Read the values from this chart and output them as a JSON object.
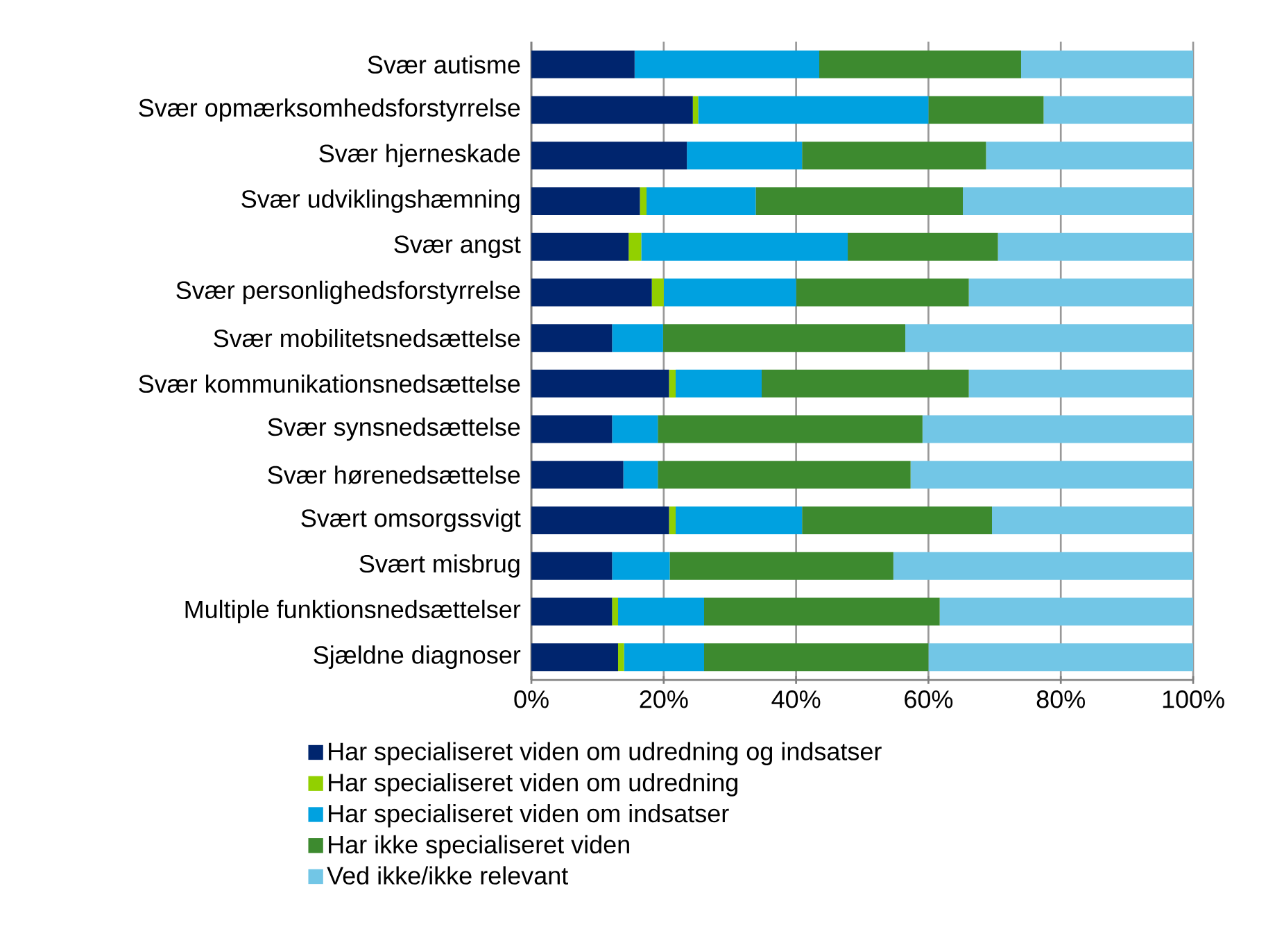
{
  "chart_data": {
    "type": "bar",
    "orientation": "horizontal",
    "stacked": true,
    "categories": [
      "Svær autisme",
      "Svær opmærksomhedsforstyrrelse",
      "Svær hjerneskade",
      "Svær udviklingshæmning",
      "Svær angst",
      "Svær personlighedsforstyrrelse",
      "Svær mobilitetsnedsættelse",
      "Svær kommunikationsnedsættelse",
      "Svær synsnedsættelse",
      "Svær hørenedsættelse",
      "Svært omsorgssvigt",
      "Svært misbrug",
      "Multiple funktionsnedsættelser",
      "Sjældne diagnoser"
    ],
    "series": [
      {
        "name": "Har specialiseret viden om udredning og indsatser",
        "color": "#00256e",
        "values": [
          15.6,
          24.4,
          23.5,
          16.4,
          14.7,
          18.2,
          12.2,
          20.8,
          12.2,
          13.9,
          20.8,
          12.2,
          12.2,
          13.1
        ]
      },
      {
        "name": "Har specialiseret viden om udredning",
        "color": "#92d000",
        "values": [
          0,
          0.8,
          0,
          1.0,
          1.9,
          1.8,
          0,
          1.0,
          0,
          0,
          1.0,
          0,
          0.9,
          0.9
        ]
      },
      {
        "name": "Har specialiseret viden om indsatser",
        "color": "#00a1e0",
        "values": [
          27.9,
          34.8,
          17.4,
          16.5,
          31.2,
          20.0,
          7.7,
          13.0,
          6.9,
          5.2,
          19.1,
          8.7,
          13.0,
          12.1
        ]
      },
      {
        "name": "Har ikke specialiseret viden",
        "color": "#3d8a2f",
        "values": [
          30.5,
          17.4,
          27.8,
          31.3,
          22.7,
          26.1,
          36.6,
          31.3,
          40.0,
          38.2,
          28.7,
          33.8,
          35.6,
          33.9
        ]
      },
      {
        "name": "Ved ikke/ikke relevant",
        "color": "#72c6e6",
        "values": [
          26.0,
          22.6,
          31.3,
          34.8,
          29.5,
          33.9,
          43.5,
          33.9,
          40.9,
          42.7,
          30.4,
          45.3,
          38.3,
          40.0
        ]
      }
    ],
    "xlim": [
      0,
      100
    ],
    "xticks": [
      {
        "value": 0,
        "label": "0%"
      },
      {
        "value": 20,
        "label": "20%"
      },
      {
        "value": 40,
        "label": "40%"
      },
      {
        "value": 60,
        "label": "60%"
      },
      {
        "value": 80,
        "label": "80%"
      },
      {
        "value": 100,
        "label": "100%"
      }
    ],
    "grid": "x",
    "legend": "bottom"
  }
}
